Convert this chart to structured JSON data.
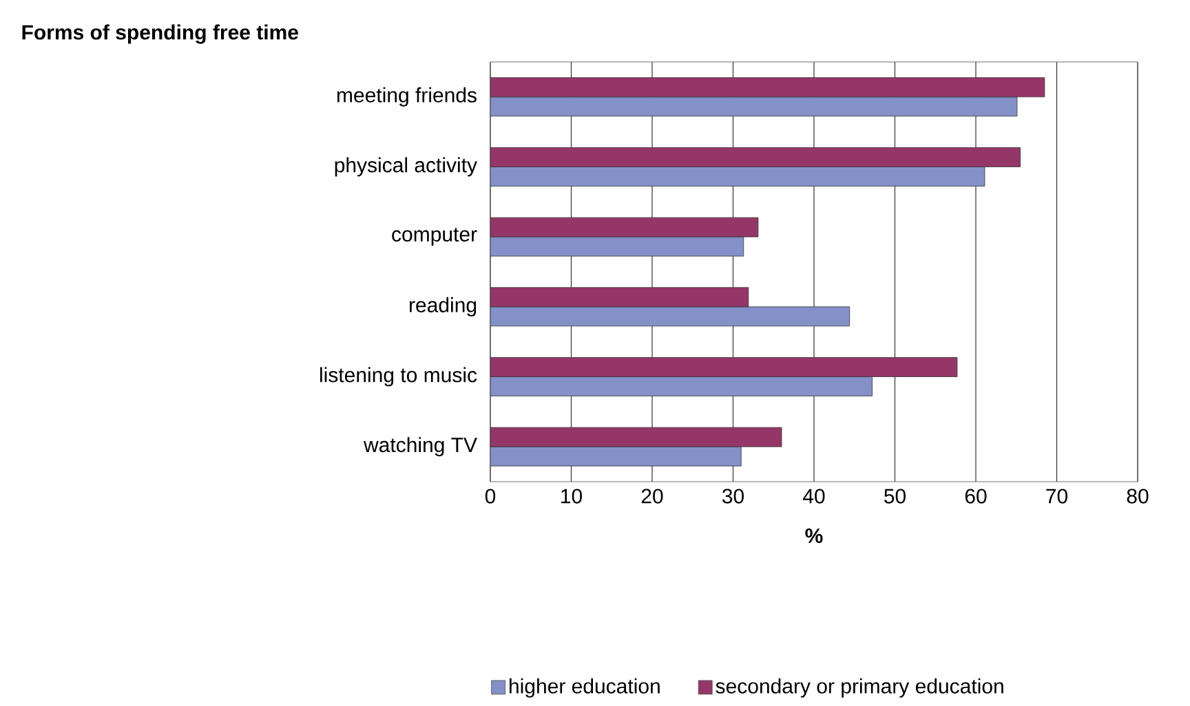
{
  "chart_data": {
    "type": "bar",
    "orientation": "horizontal",
    "title": "Forms of spending free time",
    "xlabel": "%",
    "categories": [
      "meeting friends",
      "physical activity",
      "computer",
      "reading",
      "listening to music",
      "watching TV"
    ],
    "series": [
      {
        "name": "higher education",
        "color": "#8490c8",
        "values": [
          65.1,
          61.1,
          31.3,
          44.4,
          47.2,
          31.0
        ]
      },
      {
        "name": "secondary or primary education",
        "color": "#943768",
        "values": [
          68.5,
          65.5,
          33.1,
          31.9,
          57.7,
          36.0
        ]
      }
    ],
    "xlim": [
      0,
      80
    ],
    "xticks": [
      0,
      10,
      20,
      30,
      40,
      50,
      60,
      70,
      80
    ],
    "grid": "x",
    "legend": "bottom"
  }
}
